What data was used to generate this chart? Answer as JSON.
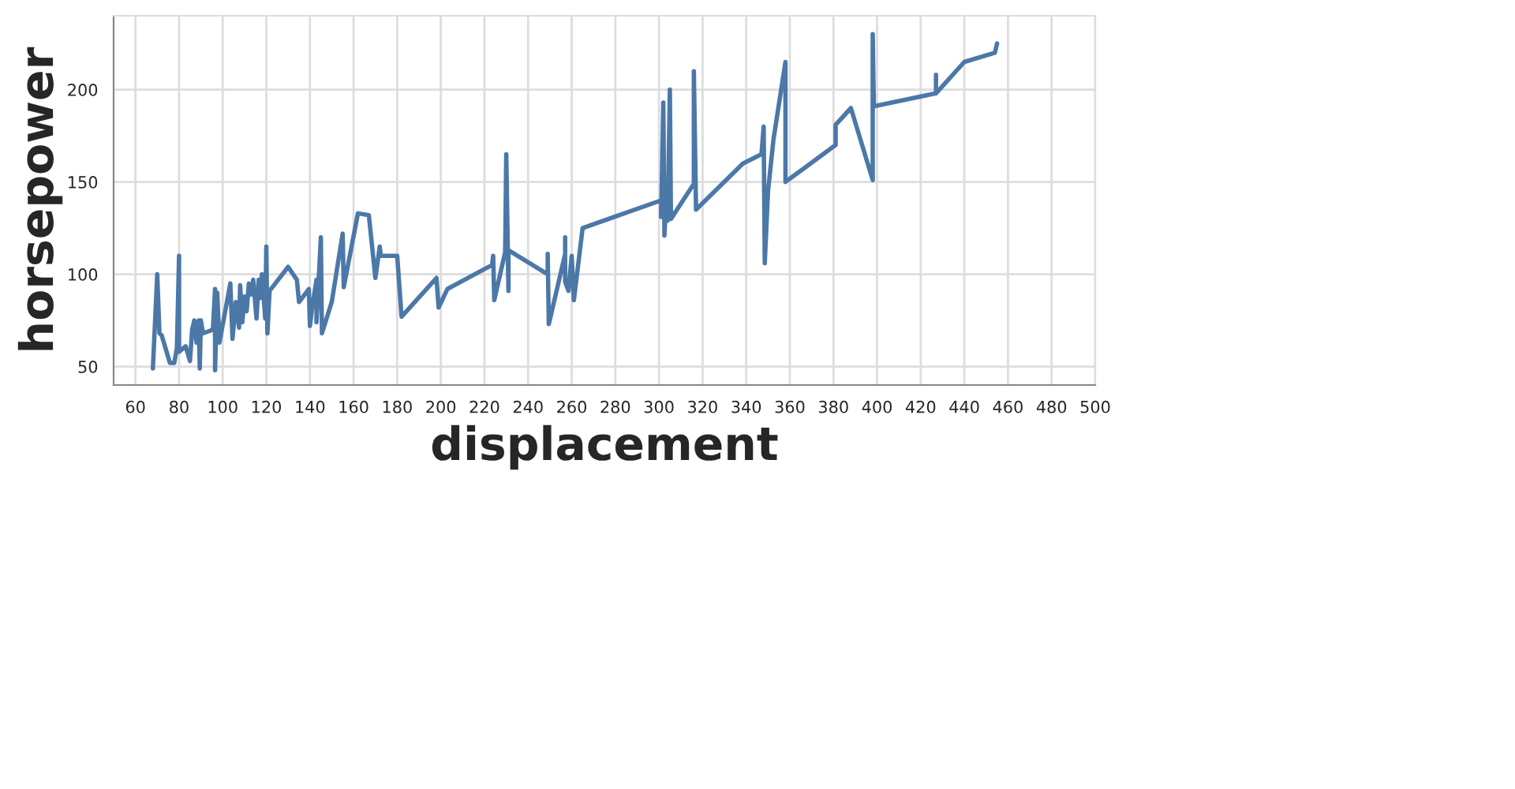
{
  "chart_data": {
    "type": "line",
    "xlabel": "displacement",
    "ylabel": "horsepower",
    "xlim": [
      50,
      500
    ],
    "ylim": [
      40,
      240
    ],
    "xticks": [
      60,
      80,
      100,
      120,
      140,
      160,
      180,
      200,
      220,
      240,
      260,
      280,
      300,
      320,
      340,
      360,
      380,
      400,
      420,
      440,
      460,
      480,
      500
    ],
    "yticks": [
      50,
      100,
      150,
      200
    ],
    "grid": true,
    "series": [
      {
        "color": "#4c78a8",
        "x": [
          68,
          70,
          71,
          72,
          75.8,
          77.8,
          79,
          80,
          80,
          83,
          85,
          86,
          87,
          88,
          89,
          89.5,
          90,
          91,
          95.5,
          96.5,
          96.5,
          97.5,
          98.5,
          103.5,
          104.5,
          106,
          107.5,
          108,
          109,
          110,
          111,
          112,
          113,
          114,
          115.5,
          116.5,
          117,
          118,
          119.5,
          120,
          120.5,
          121.5,
          130,
          134,
          135,
          139.5,
          140,
          141,
          143,
          143,
          145,
          145.5,
          150,
          155,
          155.5,
          162,
          167,
          170,
          172,
          172.5,
          180,
          182,
          198,
          199,
          203,
          223.5,
          224,
          224.5,
          229.5,
          230,
          231,
          231,
          249,
          249,
          249.5,
          257,
          257,
          257,
          258.5,
          260,
          261,
          265,
          301,
          301,
          302,
          302.5,
          303.5,
          304,
          305,
          305.5,
          316,
          316,
          317,
          338.5,
          347,
          348,
          348.5,
          350,
          352.5,
          358,
          358,
          358,
          381,
          381,
          388,
          398,
          398,
          398.5,
          427,
          427,
          427,
          440,
          454,
          455
        ],
        "values": [
          49,
          100,
          68,
          67,
          52,
          52,
          60,
          110,
          58,
          61,
          53,
          70,
          75,
          63,
          75,
          49,
          75,
          68,
          70,
          92,
          48,
          90,
          63,
          95,
          65,
          85,
          71,
          94,
          74,
          88,
          80,
          95,
          89,
          97,
          76,
          97,
          87,
          100,
          76,
          115,
          68,
          91,
          104,
          97,
          85,
          92,
          72,
          82,
          97,
          74,
          120,
          68,
          85,
          122,
          93,
          133,
          132,
          98,
          115,
          110,
          110,
          77,
          98,
          82,
          92,
          105,
          110,
          86,
          112,
          165,
          91,
          113,
          100,
          111,
          73,
          111,
          120,
          96,
          91,
          110,
          86,
          125,
          140,
          131,
          193,
          121,
          145,
          129,
          200,
          130,
          149,
          210,
          135,
          160,
          165,
          180,
          106,
          145,
          173,
          215,
          150,
          150,
          170,
          181,
          190,
          151,
          230,
          191,
          198,
          208,
          198,
          215,
          220,
          225
        ]
      }
    ]
  }
}
